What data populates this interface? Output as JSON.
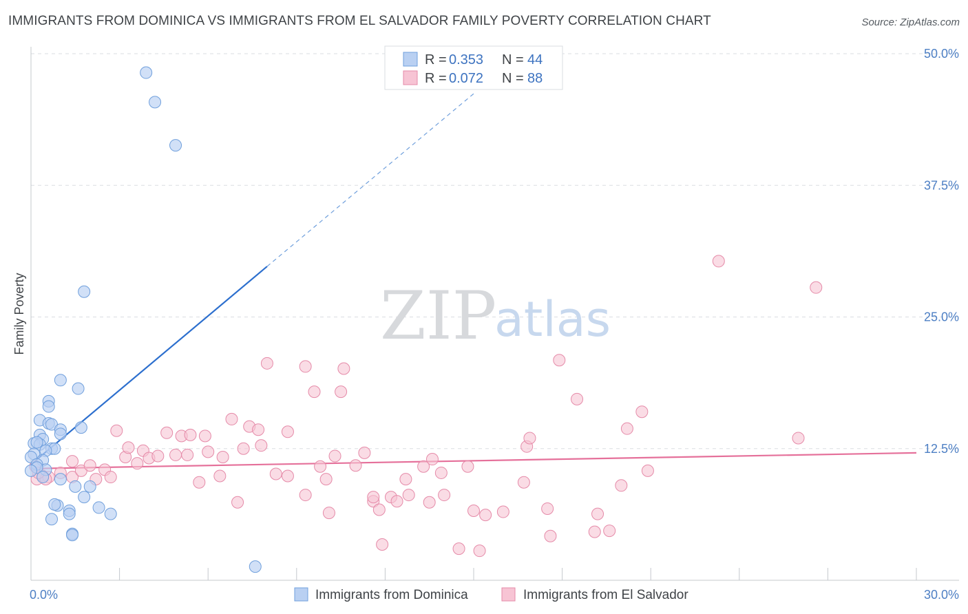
{
  "title": "IMMIGRANTS FROM DOMINICA VS IMMIGRANTS FROM EL SALVADOR FAMILY POVERTY CORRELATION CHART",
  "source": "Source: ZipAtlas.com",
  "watermark": {
    "zip": "ZIP",
    "atlas": "atlas"
  },
  "colors": {
    "dominica_fill": "#b9d0f2",
    "dominica_stroke": "#6f9fdc",
    "dominica_line": "#2c6fce",
    "salvador_fill": "#f7c4d4",
    "salvador_stroke": "#e58aa8",
    "salvador_line": "#e5709a",
    "grid": "#dadde2",
    "tick_text": "#4d7fc4"
  },
  "legend": {
    "series1": {
      "r_label": "R =",
      "r_value": "0.353",
      "n_label": "N =",
      "n_value": "44"
    },
    "series2": {
      "r_label": "R =",
      "r_value": "0.072",
      "n_label": "N =",
      "n_value": "88"
    }
  },
  "chart_data": {
    "type": "scatter",
    "title": "IMMIGRANTS FROM DOMINICA VS IMMIGRANTS FROM EL SALVADOR FAMILY POVERTY CORRELATION CHART",
    "xlabel": "",
    "ylabel": "Family Poverty",
    "xlim": [
      0,
      30
    ],
    "ylim": [
      0,
      52
    ],
    "x_tick_labels": [
      {
        "value": 0,
        "label": "0.0%"
      },
      {
        "value": 30,
        "label": "30.0%"
      }
    ],
    "y_tick_labels": [
      {
        "value": 12.5,
        "label": "12.5%"
      },
      {
        "value": 25,
        "label": "25.0%"
      },
      {
        "value": 37.5,
        "label": "37.5%"
      },
      {
        "value": 50,
        "label": "50.0%"
      }
    ],
    "grid": true,
    "legend_position": "top-center",
    "series": [
      {
        "name": "Immigrants from Dominica",
        "R": 0.353,
        "N": 44,
        "trend": {
          "x0": 0,
          "y0": 11.0,
          "x1": 8,
          "y1": 29.8,
          "dashed_to_x": 15,
          "dashed_to_y": 46.2
        },
        "points": [
          [
            3.9,
            48.2
          ],
          [
            4.2,
            45.4
          ],
          [
            4.9,
            41.3
          ],
          [
            1.8,
            27.4
          ],
          [
            1.0,
            19.0
          ],
          [
            1.6,
            18.2
          ],
          [
            0.6,
            17.0
          ],
          [
            0.6,
            16.5
          ],
          [
            0.3,
            15.2
          ],
          [
            0.6,
            14.9
          ],
          [
            0.7,
            14.8
          ],
          [
            1.7,
            14.5
          ],
          [
            1.0,
            14.3
          ],
          [
            0.3,
            13.8
          ],
          [
            0.4,
            13.4
          ],
          [
            1.0,
            13.9
          ],
          [
            0.1,
            13.0
          ],
          [
            0.3,
            12.9
          ],
          [
            0.7,
            12.5
          ],
          [
            0.8,
            12.5
          ],
          [
            0.5,
            12.3
          ],
          [
            0.1,
            12.0
          ],
          [
            0.4,
            11.4
          ],
          [
            0.0,
            11.7
          ],
          [
            0.2,
            11.0
          ],
          [
            0.5,
            10.5
          ],
          [
            0.2,
            10.7
          ],
          [
            0.4,
            9.8
          ],
          [
            1.0,
            9.6
          ],
          [
            1.5,
            8.9
          ],
          [
            2.0,
            8.9
          ],
          [
            1.8,
            7.9
          ],
          [
            0.9,
            7.1
          ],
          [
            0.8,
            7.2
          ],
          [
            2.3,
            6.9
          ],
          [
            1.3,
            6.6
          ],
          [
            1.3,
            6.3
          ],
          [
            2.7,
            6.3
          ],
          [
            0.7,
            5.8
          ],
          [
            1.4,
            4.4
          ],
          [
            1.4,
            4.3
          ],
          [
            7.6,
            1.3
          ],
          [
            0.0,
            10.4
          ],
          [
            0.2,
            13.1
          ]
        ]
      },
      {
        "name": "Immigrants from El Salvador",
        "R": 0.072,
        "N": 88,
        "trend": {
          "x0": 0,
          "y0": 10.6,
          "x1": 30,
          "y1": 12.1
        },
        "points": [
          [
            0.2,
            9.6
          ],
          [
            0.4,
            9.9
          ],
          [
            0.6,
            9.8
          ],
          [
            0.5,
            9.6
          ],
          [
            1.0,
            10.2
          ],
          [
            1.4,
            9.8
          ],
          [
            1.4,
            11.3
          ],
          [
            1.7,
            10.4
          ],
          [
            2.0,
            10.9
          ],
          [
            2.2,
            9.6
          ],
          [
            2.5,
            10.5
          ],
          [
            2.7,
            9.8
          ],
          [
            2.9,
            14.2
          ],
          [
            3.2,
            11.7
          ],
          [
            3.3,
            12.6
          ],
          [
            3.6,
            11.1
          ],
          [
            3.8,
            12.3
          ],
          [
            4.0,
            11.6
          ],
          [
            4.3,
            11.8
          ],
          [
            4.6,
            14.0
          ],
          [
            4.9,
            11.9
          ],
          [
            5.1,
            13.7
          ],
          [
            5.3,
            11.9
          ],
          [
            5.4,
            13.8
          ],
          [
            5.7,
            9.3
          ],
          [
            5.9,
            13.7
          ],
          [
            6.0,
            12.2
          ],
          [
            6.4,
            9.9
          ],
          [
            6.5,
            11.7
          ],
          [
            6.8,
            15.3
          ],
          [
            7.0,
            7.4
          ],
          [
            7.2,
            12.5
          ],
          [
            7.4,
            14.6
          ],
          [
            7.7,
            14.3
          ],
          [
            7.8,
            12.8
          ],
          [
            8.0,
            20.6
          ],
          [
            8.3,
            10.1
          ],
          [
            8.7,
            9.9
          ],
          [
            8.7,
            14.1
          ],
          [
            9.3,
            8.1
          ],
          [
            9.3,
            20.3
          ],
          [
            9.6,
            17.9
          ],
          [
            9.8,
            10.8
          ],
          [
            10.0,
            9.6
          ],
          [
            10.1,
            6.4
          ],
          [
            10.3,
            11.8
          ],
          [
            10.5,
            17.9
          ],
          [
            10.6,
            20.1
          ],
          [
            11.0,
            10.9
          ],
          [
            11.3,
            12.1
          ],
          [
            11.6,
            7.5
          ],
          [
            11.6,
            7.9
          ],
          [
            11.8,
            6.7
          ],
          [
            11.9,
            3.4
          ],
          [
            12.2,
            7.9
          ],
          [
            12.4,
            7.5
          ],
          [
            12.7,
            9.6
          ],
          [
            12.8,
            8.1
          ],
          [
            13.3,
            10.8
          ],
          [
            13.5,
            7.4
          ],
          [
            13.6,
            11.5
          ],
          [
            13.9,
            10.2
          ],
          [
            14.0,
            8.1
          ],
          [
            14.5,
            3.0
          ],
          [
            14.8,
            10.8
          ],
          [
            15.0,
            6.6
          ],
          [
            15.2,
            2.8
          ],
          [
            15.4,
            6.2
          ],
          [
            16.0,
            6.5
          ],
          [
            16.7,
            9.3
          ],
          [
            16.8,
            12.7
          ],
          [
            16.9,
            13.5
          ],
          [
            17.5,
            6.8
          ],
          [
            17.6,
            4.2
          ],
          [
            17.9,
            20.9
          ],
          [
            18.5,
            17.2
          ],
          [
            19.1,
            4.6
          ],
          [
            19.2,
            6.3
          ],
          [
            19.6,
            4.7
          ],
          [
            20.0,
            9.0
          ],
          [
            20.2,
            14.4
          ],
          [
            20.7,
            16.0
          ],
          [
            20.9,
            10.4
          ],
          [
            23.3,
            30.3
          ],
          [
            26.0,
            13.5
          ],
          [
            26.6,
            27.8
          ],
          [
            0.15,
            10.8
          ],
          [
            0.25,
            10.2
          ]
        ]
      }
    ]
  }
}
